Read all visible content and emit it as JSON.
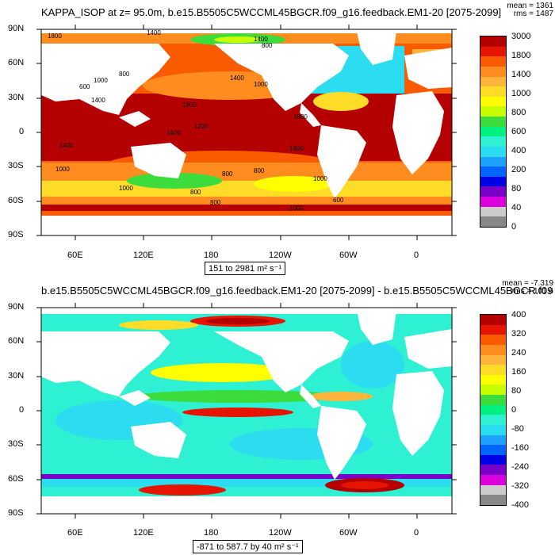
{
  "panel1": {
    "title": "KAPPA_ISOP at z=  95.0m, b.e15.B5505C5WCCML45BGCR.f09_g16.feedback.EM1-20 [2075-2099]",
    "mean_text": "mean = 1361",
    "rms_text": "rms = 1487",
    "range_text": "151 to 2981 m² s⁻¹",
    "lat_labels": [
      "90N",
      "60N",
      "30N",
      "0",
      "30S",
      "60S",
      "90S"
    ],
    "lon_labels": [
      "60E",
      "120E",
      "180",
      "120W",
      "60W",
      "0"
    ],
    "contour_labels": [
      "1800",
      "1400",
      "1400",
      "800",
      "1000",
      "600",
      "1400",
      "800",
      "1400",
      "1000",
      "1800",
      "1200",
      "1400",
      "1800",
      "1800",
      "1400",
      "1000",
      "800",
      "800",
      "1000",
      "1000",
      "800",
      "600",
      "800",
      "1000"
    ],
    "colorbar": {
      "labels": [
        "3000",
        "1800",
        "1400",
        "1000",
        "800",
        "600",
        "400",
        "200",
        "80",
        "40",
        "0"
      ],
      "colors": [
        "#b40000",
        "#e61400",
        "#fa5a00",
        "#ff8c1e",
        "#ffb43c",
        "#ffdc28",
        "#ffff00",
        "#c8ff00",
        "#3cdc3c",
        "#00f080",
        "#2ef0d2",
        "#2cdcf0",
        "#1ea0ff",
        "#0064ff",
        "#0000e6",
        "#7800c8",
        "#dc00dc",
        "#cccccc",
        "#888888"
      ]
    }
  },
  "panel2": {
    "title": "b.e15.B5505C5WCCML45BGCR.f09_g16.feedback.EM1-20 [2075-2099] - b.e15.B5505C5WCCML45BGCR.f09",
    "mean_text": "mean = -7.319",
    "rms_text": "rms = 101.6",
    "range_text": "-871 to 587.7 by 40 m² s⁻¹",
    "lat_labels": [
      "90N",
      "60N",
      "30N",
      "0",
      "30S",
      "60S",
      "90S"
    ],
    "lon_labels": [
      "60E",
      "120E",
      "180",
      "120W",
      "60W",
      "0"
    ],
    "colorbar": {
      "labels": [
        "400",
        "320",
        "240",
        "160",
        "80",
        "0",
        "-80",
        "-160",
        "-240",
        "-320",
        "-400"
      ],
      "colors": [
        "#b40000",
        "#e61400",
        "#fa5a00",
        "#ff8c1e",
        "#ffb43c",
        "#ffdc28",
        "#ffff00",
        "#c8ff00",
        "#3cdc3c",
        "#00f080",
        "#2ef0d2",
        "#2cdcf0",
        "#1ea0ff",
        "#0064ff",
        "#0000e6",
        "#7800c8",
        "#dc00dc",
        "#cccccc",
        "#888888"
      ]
    }
  }
}
